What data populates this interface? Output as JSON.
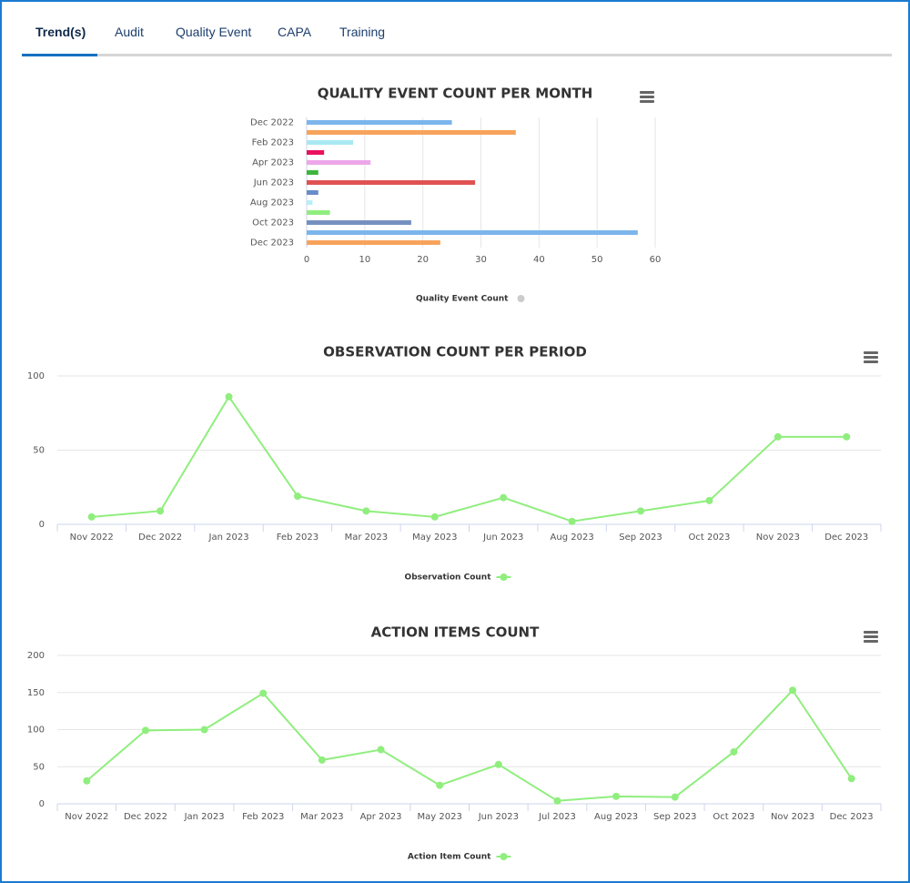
{
  "tabs": [
    "Trend(s)",
    "Audit",
    "Quality Event",
    "CAPA",
    "Training"
  ],
  "chart_data": [
    {
      "type": "hbar",
      "title": "QUALITY EVENT COUNT PER MONTH",
      "categories": [
        "Dec 2022",
        null,
        "Feb 2023",
        null,
        "Apr 2023",
        null,
        "Jun 2023",
        null,
        "Aug 2023",
        null,
        "Oct 2023",
        null,
        "Dec 2023"
      ],
      "series": [
        {
          "name": "Quality Event Count",
          "color": "#cccccc",
          "colors": [
            "#7cb5ec",
            "#f7a35c",
            "#a9e8f2",
            "#e8125f",
            "#eea6ea",
            "#3cb53c",
            "#e05252",
            "#6a8cc8",
            "#b4f0f8",
            "#90ee7e",
            "#7590c0",
            "#7cb5ec",
            "#f7a35c"
          ],
          "values": [
            25,
            36,
            8,
            3,
            11,
            2,
            29,
            2,
            1,
            4,
            18,
            57,
            23
          ]
        }
      ],
      "xlim": [
        0,
        60
      ],
      "xticks": [
        0,
        10,
        20,
        30,
        40,
        50,
        60
      ],
      "grid": true
    },
    {
      "type": "line",
      "title": "OBSERVATION COUNT PER PERIOD",
      "categories": [
        "Nov 2022",
        "Dec 2022",
        "Jan 2023",
        "Feb 2023",
        "Mar 2023",
        "May 2023",
        "Jun 2023",
        "Aug 2023",
        "Sep 2023",
        "Oct 2023",
        "Nov 2023",
        "Dec 2023"
      ],
      "series": [
        {
          "name": "Observation Count",
          "color": "#90ee7e",
          "values": [
            5,
            9,
            86,
            19,
            9,
            5,
            18,
            2,
            9,
            16,
            59,
            59
          ]
        }
      ],
      "ylim": [
        0,
        100
      ],
      "yticks": [
        0,
        50,
        100
      ],
      "grid": true
    },
    {
      "type": "line",
      "title": "ACTION ITEMS COUNT",
      "categories": [
        "Nov 2022",
        "Dec 2022",
        "Jan 2023",
        "Feb 2023",
        "Mar 2023",
        "Apr 2023",
        "May 2023",
        "Jun 2023",
        "Jul 2023",
        "Aug 2023",
        "Sep 2023",
        "Oct 2023",
        "Nov 2023",
        "Dec 2023"
      ],
      "series": [
        {
          "name": "Action Item Count",
          "color": "#90ee7e",
          "values": [
            31,
            99,
            100,
            149,
            59,
            73,
            25,
            53,
            4,
            10,
            9,
            70,
            153,
            34
          ]
        }
      ],
      "ylim": [
        0,
        200
      ],
      "yticks": [
        0,
        50,
        100,
        150,
        200
      ],
      "grid": true
    }
  ]
}
